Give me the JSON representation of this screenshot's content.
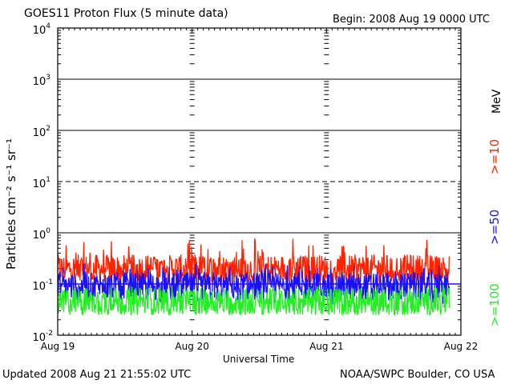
{
  "header": {
    "title": "GOES11 Proton Flux (5 minute data)",
    "begin": "Begin: 2008 Aug 19 0000 UTC"
  },
  "footer": {
    "updated": "Updated 2008 Aug 21 21:55:02 UTC",
    "source": "NOAA/SWPC Boulder, CO USA"
  },
  "legend": {
    "unit": "MeV",
    "items": [
      {
        "label": ">=10",
        "color": "#ff2200"
      },
      {
        "label": ">=50",
        "color": "#1a10ff"
      },
      {
        "label": ">=100",
        "color": "#22ee22"
      }
    ]
  },
  "chart_data": {
    "type": "line",
    "title": "GOES11 Proton Flux (5 minute data)",
    "xlabel": "Universal Time",
    "ylabel": "Particles cm⁻² s⁻¹ sr⁻¹",
    "yscale": "log",
    "ylim": [
      0.01,
      10000
    ],
    "ytick_labels": [
      {
        "base": "10",
        "exp": "-2"
      },
      {
        "base": "10",
        "exp": "-1"
      },
      {
        "base": "10",
        "exp": "0"
      },
      {
        "base": "10",
        "exp": "1"
      },
      {
        "base": "10",
        "exp": "2"
      },
      {
        "base": "10",
        "exp": "3"
      },
      {
        "base": "10",
        "exp": "4"
      }
    ],
    "xlim": [
      "2008-08-19T00:00",
      "2008-08-22T00:00"
    ],
    "xtick_labels": [
      "Aug 19",
      "Aug 20",
      "Aug 21",
      "Aug 22"
    ],
    "threshold_lines": [
      {
        "value": 10,
        "style": "dashed"
      },
      {
        "value": 0.1,
        "style": "solid",
        "color": "#1a10ff"
      }
    ],
    "data_end": "2008-08-21T21:55",
    "series": [
      {
        "name": ">=10 MeV",
        "color": "#ff2200",
        "typical": 0.2,
        "range": [
          0.1,
          0.8
        ]
      },
      {
        "name": ">=50 MeV",
        "color": "#1a10ff",
        "typical": 0.09,
        "range": [
          0.04,
          0.25
        ]
      },
      {
        "name": ">=100 MeV",
        "color": "#22ee22",
        "typical": 0.045,
        "range": [
          0.025,
          0.1
        ]
      }
    ]
  }
}
